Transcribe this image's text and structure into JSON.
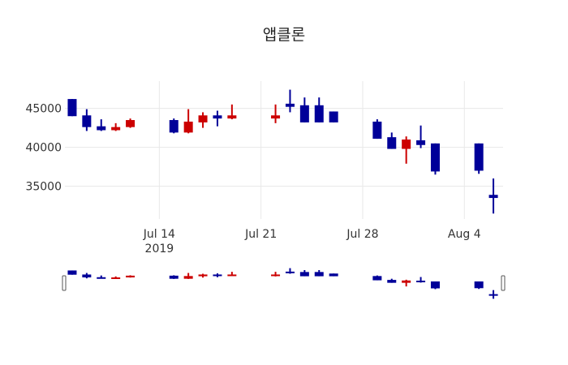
{
  "chart_data": {
    "type": "candlestick",
    "title": "앱클론",
    "xlabel": "",
    "ylabel": "",
    "x_ticks": [
      {
        "label": "Jul 14",
        "sublabel": "2019",
        "date": "2019-07-14"
      },
      {
        "label": "Jul 21",
        "sublabel": "",
        "date": "2019-07-21"
      },
      {
        "label": "Jul 28",
        "sublabel": "",
        "date": "2019-07-28"
      },
      {
        "label": "Aug 4",
        "sublabel": "",
        "date": "2019-08-04"
      }
    ],
    "y_ticks": [
      35000,
      40000,
      45000
    ],
    "ylim": [
      30800,
      48500
    ],
    "xlim": [
      "2019-07-07T12:00",
      "2019-08-06T16:00"
    ],
    "grid": true,
    "rangeslider": true,
    "colors": {
      "increasing": "#cc0000",
      "decreasing": "#000099",
      "grid": "#e8e8e8"
    },
    "series": [
      {
        "date": "2019-07-08",
        "open": 46200,
        "high": 46200,
        "low": 44000,
        "close": 44000
      },
      {
        "date": "2019-07-09",
        "open": 44100,
        "high": 44900,
        "low": 42100,
        "close": 42600
      },
      {
        "date": "2019-07-10",
        "open": 42700,
        "high": 43600,
        "low": 42100,
        "close": 42200
      },
      {
        "date": "2019-07-11",
        "open": 42200,
        "high": 43100,
        "low": 42100,
        "close": 42600
      },
      {
        "date": "2019-07-12",
        "open": 42600,
        "high": 43700,
        "low": 42500,
        "close": 43500
      },
      {
        "date": "2019-07-15",
        "open": 43500,
        "high": 43700,
        "low": 41800,
        "close": 41900
      },
      {
        "date": "2019-07-16",
        "open": 41900,
        "high": 44900,
        "low": 41800,
        "close": 43300
      },
      {
        "date": "2019-07-17",
        "open": 43200,
        "high": 44500,
        "low": 42500,
        "close": 44100
      },
      {
        "date": "2019-07-18",
        "open": 44100,
        "high": 44700,
        "low": 42700,
        "close": 43700
      },
      {
        "date": "2019-07-19",
        "open": 43700,
        "high": 45500,
        "low": 43600,
        "close": 44100
      },
      {
        "date": "2019-07-22",
        "open": 43700,
        "high": 45500,
        "low": 43100,
        "close": 44100
      },
      {
        "date": "2019-07-23",
        "open": 45600,
        "high": 47400,
        "low": 44500,
        "close": 45200
      },
      {
        "date": "2019-07-24",
        "open": 45400,
        "high": 46400,
        "low": 43200,
        "close": 43200
      },
      {
        "date": "2019-07-25",
        "open": 45400,
        "high": 46400,
        "low": 43200,
        "close": 43200
      },
      {
        "date": "2019-07-26",
        "open": 44600,
        "high": 44600,
        "low": 43200,
        "close": 43200
      },
      {
        "date": "2019-07-29",
        "open": 43300,
        "high": 43600,
        "low": 41100,
        "close": 41100
      },
      {
        "date": "2019-07-30",
        "open": 41300,
        "high": 41900,
        "low": 39800,
        "close": 39800
      },
      {
        "date": "2019-07-31",
        "open": 39800,
        "high": 41400,
        "low": 37900,
        "close": 41000
      },
      {
        "date": "2019-08-01",
        "open": 40900,
        "high": 42800,
        "low": 39900,
        "close": 40300
      },
      {
        "date": "2019-08-02",
        "open": 40500,
        "high": 40500,
        "low": 36500,
        "close": 36900
      },
      {
        "date": "2019-08-05",
        "open": 40500,
        "high": 40500,
        "low": 36600,
        "close": 37000
      },
      {
        "date": "2019-08-06",
        "open": 33900,
        "high": 36000,
        "low": 31500,
        "close": 33500
      }
    ]
  }
}
